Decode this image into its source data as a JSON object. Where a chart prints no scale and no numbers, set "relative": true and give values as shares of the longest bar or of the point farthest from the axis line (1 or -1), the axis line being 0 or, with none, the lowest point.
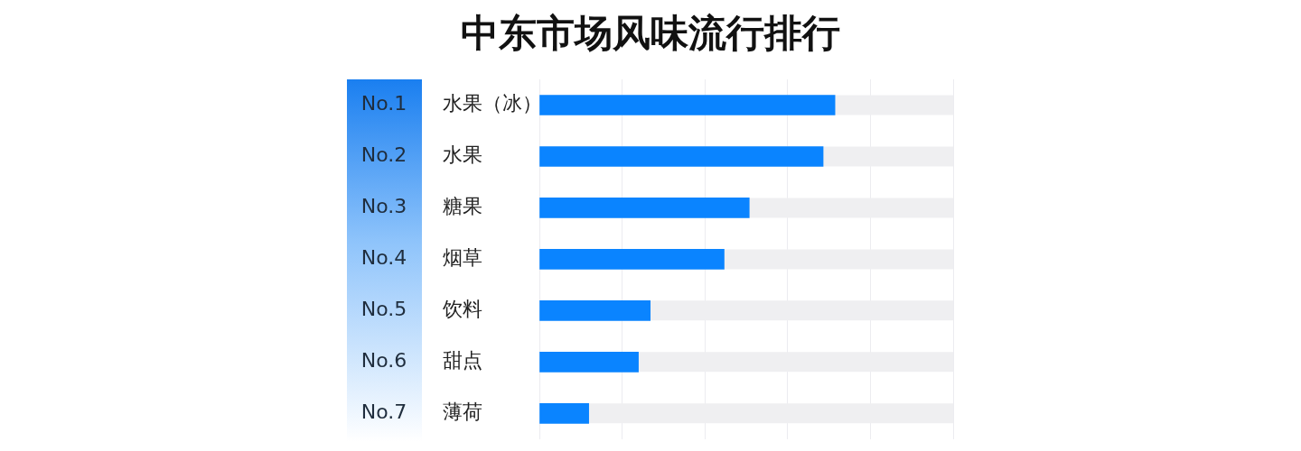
{
  "chart_data": {
    "type": "bar",
    "orientation": "horizontal",
    "relative": true,
    "title": "中东市场风味流行排行",
    "categories": [
      "水果（冰）",
      "水果",
      "糖果",
      "烟草",
      "饮料",
      "甜点",
      "薄荷"
    ],
    "values": [
      1,
      0.96,
      0.71,
      0.625,
      0.375,
      0.335,
      0.167
    ],
    "color": "#0a84ff",
    "grid": "x",
    "annotations": [
      "No.1",
      "No.2",
      "No.3",
      "No.4",
      "No.5",
      "No.6",
      "No.7"
    ]
  }
}
